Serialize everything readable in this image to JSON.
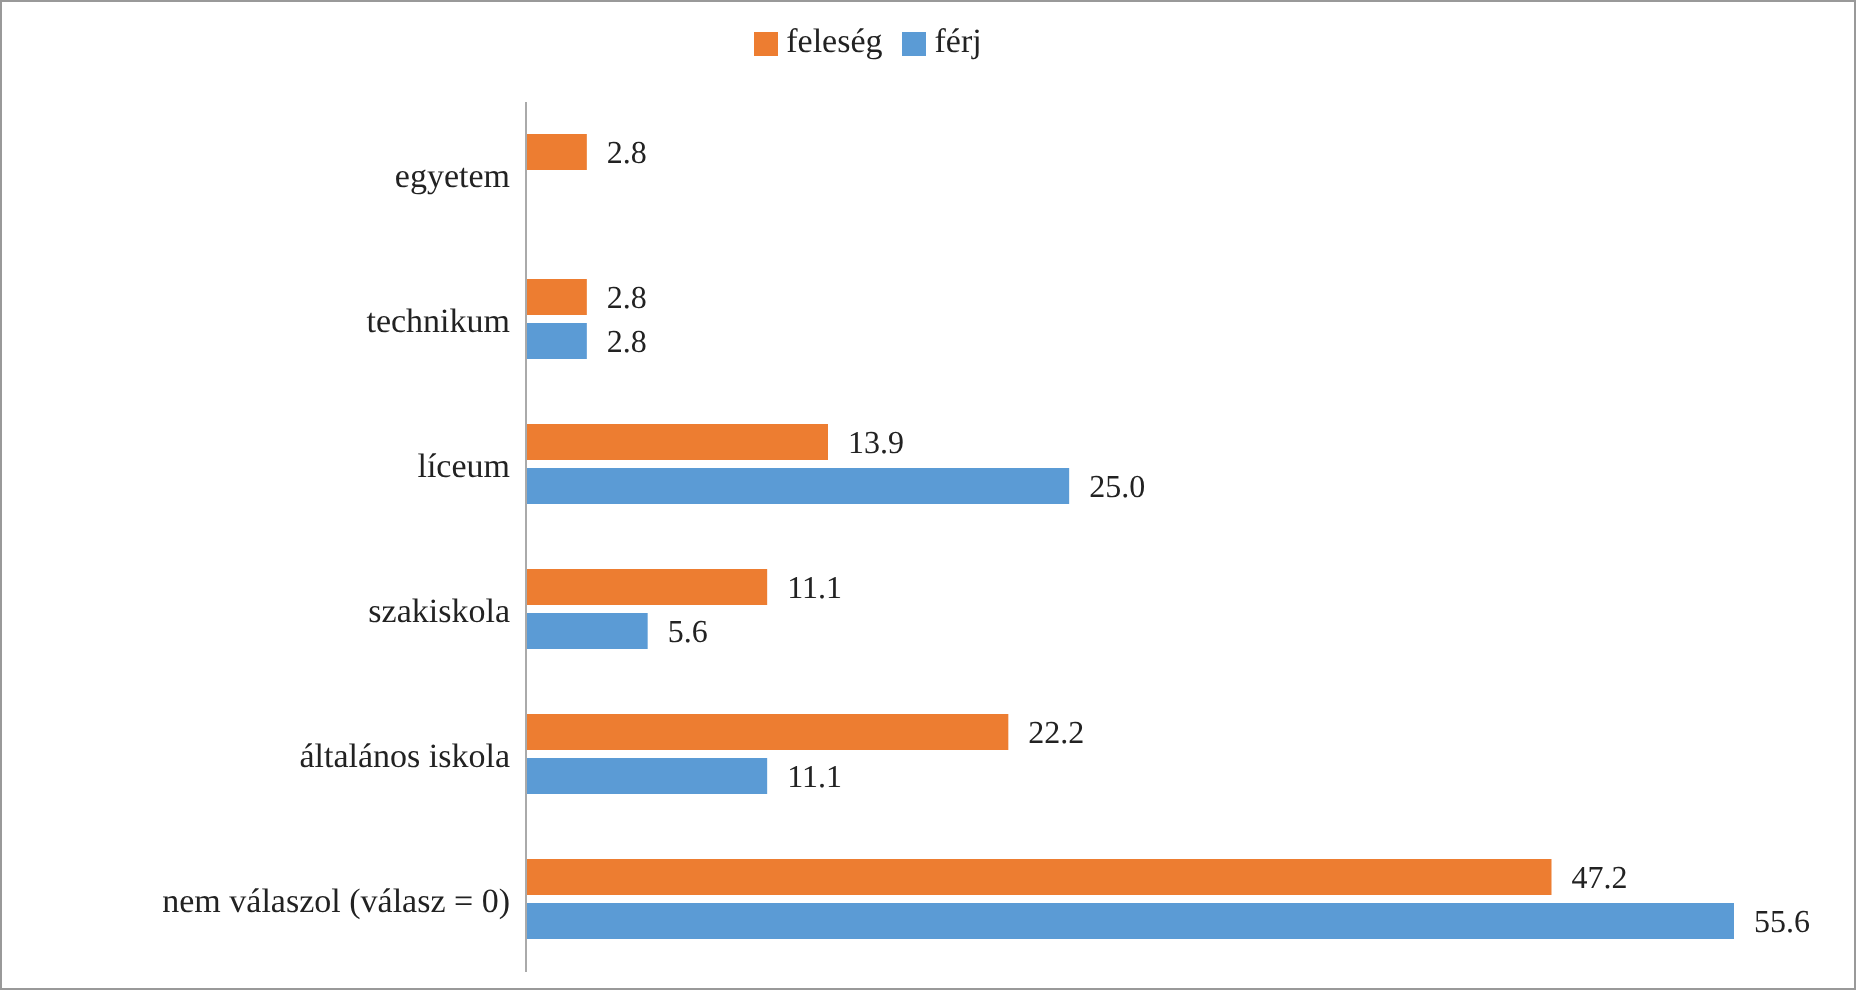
{
  "chart_data": {
    "type": "bar",
    "orientation": "horizontal",
    "categories": [
      "egyetem",
      "technikum",
      "líceum",
      "szakiskola",
      "általános iskola",
      "nem válaszol (válasz = 0)"
    ],
    "series": [
      {
        "name": "feleség",
        "color": "#ed7d31",
        "values": [
          2.8,
          2.8,
          13.9,
          11.1,
          22.2,
          47.2
        ],
        "value_labels": [
          "2.8",
          "2.8",
          "13.9",
          "11.1",
          "22.2",
          "47.2"
        ]
      },
      {
        "name": "férj",
        "color": "#5b9bd5",
        "values": [
          null,
          2.8,
          25.0,
          5.6,
          11.1,
          55.6
        ],
        "value_labels": [
          null,
          "2.8",
          "25.0",
          "5.6",
          "11.1",
          "55.6"
        ]
      }
    ],
    "legend": "top",
    "grid": false
  }
}
